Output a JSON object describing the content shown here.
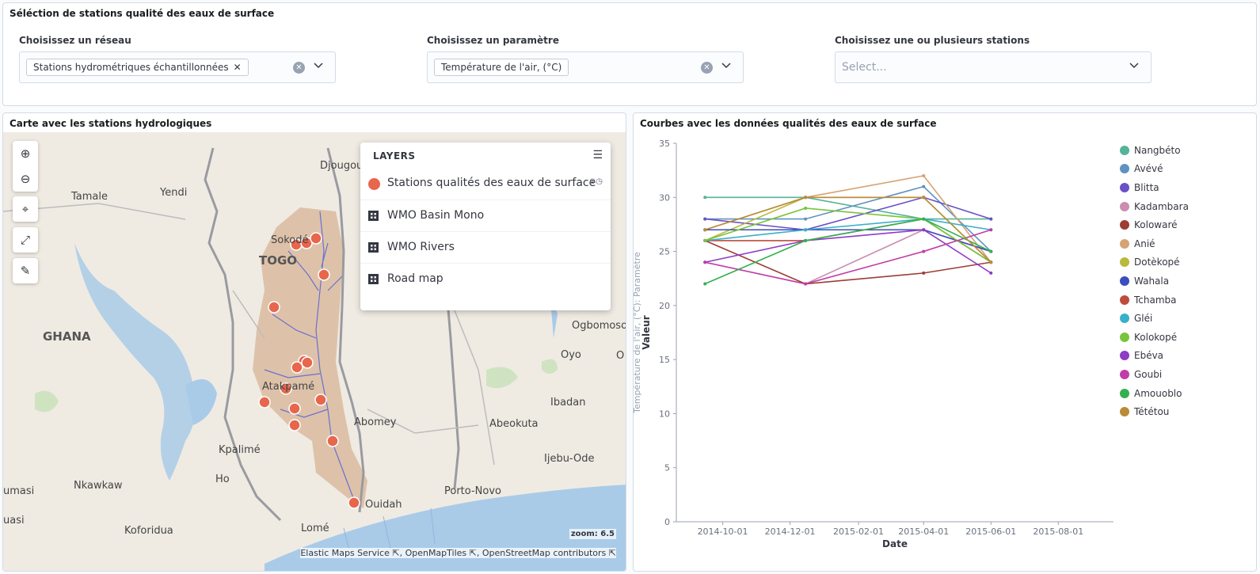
{
  "selection_panel": {
    "title": "Séléction de stations qualité des eaux de surface",
    "network": {
      "label": "Choisissez un réseau",
      "chip": "Stations hydrométriques échantillonnées"
    },
    "parameter": {
      "label": "Choisissez un paramètre",
      "chip": "Température de l'air, (°C)"
    },
    "stations": {
      "label": "Choisissez une ou plusieurs stations",
      "placeholder": "Select..."
    }
  },
  "map_panel": {
    "title": "Carte avec les stations hydrologiques",
    "controls": [
      "zoom-in",
      "zoom-out",
      "locate",
      "fit-bounds",
      "measure"
    ],
    "layers": {
      "header": "LAYERS",
      "items": [
        {
          "label": "Stations qualités des eaux de surface",
          "icon": "dot",
          "color": "#e7664c"
        },
        {
          "label": "WMO Basin Mono",
          "icon": "grid"
        },
        {
          "label": "WMO Rivers",
          "icon": "grid"
        },
        {
          "label": "Road map",
          "icon": "grid"
        }
      ]
    },
    "place_labels": [
      "Djougou",
      "Tamale",
      "Yendi",
      "Sokodé",
      "TOGO",
      "GHANA",
      "Atakpamé",
      "Abomey",
      "Kpalimé",
      "Ho",
      "Nkawkaw",
      "Koforidua",
      "Lomé",
      "Ouidah",
      "Porto-Novo",
      "Ogbomoso",
      "Oyo",
      "Ibadan",
      "Abeokuta",
      "Ijebu-Ode",
      "umasi",
      "uasi",
      "O"
    ],
    "zoom": "zoom: 6.5",
    "attribution": [
      "Elastic Maps Service",
      "OpenMapTiles",
      "OpenStreetMap contributors"
    ]
  },
  "chart_panel": {
    "title": "Courbes avec les données qualités des eaux de surface"
  },
  "chart_data": {
    "type": "line",
    "xlabel": "Date",
    "ylabel": "Valeur",
    "ylabel_secondary": "Température de l'air, (°C): Paramètre",
    "ylim": [
      0,
      35
    ],
    "yticks": [
      0,
      5,
      10,
      15,
      20,
      25,
      30,
      35
    ],
    "xticks": [
      "2014-10-01",
      "2014-12-01",
      "2015-02-01",
      "2015-04-01",
      "2015-06-01",
      "2015-08-01"
    ],
    "x": [
      "2014-09-15",
      "2014-12-15",
      "2015-04-01",
      "2015-06-01"
    ],
    "grid": false,
    "legend_position": "right",
    "series": [
      {
        "name": "Nangbéto",
        "color": "#54b399",
        "values": [
          30,
          30,
          28,
          28
        ]
      },
      {
        "name": "Avévé",
        "color": "#6092c0",
        "values": [
          28,
          28,
          31,
          25
        ]
      },
      {
        "name": "Blitta",
        "color": "#6b50c7",
        "values": [
          28,
          27,
          30,
          28
        ]
      },
      {
        "name": "Kadambara",
        "color": "#ca8eae",
        "values": [
          24,
          22,
          27,
          25
        ]
      },
      {
        "name": "Kolowaré",
        "color": "#9c3e34",
        "values": [
          26,
          22,
          23,
          24
        ]
      },
      {
        "name": "Anié",
        "color": "#d6a373",
        "values": [
          27,
          30,
          32,
          24
        ]
      },
      {
        "name": "Dotèkopé",
        "color": "#b9b93b",
        "values": [
          26,
          30,
          30,
          24
        ]
      },
      {
        "name": "Wahala",
        "color": "#3c4dbd",
        "values": [
          27,
          27,
          27,
          25
        ]
      },
      {
        "name": "Tchamba",
        "color": "#bd4c3c",
        "values": [
          26,
          26,
          28,
          24
        ]
      },
      {
        "name": "Gléi",
        "color": "#3aafc9",
        "values": [
          26,
          27,
          28,
          27
        ]
      },
      {
        "name": "Kolokopé",
        "color": "#79c43c",
        "values": [
          26,
          29,
          28,
          24
        ]
      },
      {
        "name": "Ebéva",
        "color": "#8e3bc6",
        "values": [
          24,
          26,
          27,
          23
        ]
      },
      {
        "name": "Goubi",
        "color": "#c13da9",
        "values": [
          24,
          22,
          25,
          27
        ]
      },
      {
        "name": "Amouoblo",
        "color": "#35b050",
        "values": [
          22,
          26,
          28,
          25
        ]
      },
      {
        "name": "Tététou",
        "color": "#b98b37",
        "values": [
          27,
          30,
          30,
          24
        ]
      }
    ]
  }
}
